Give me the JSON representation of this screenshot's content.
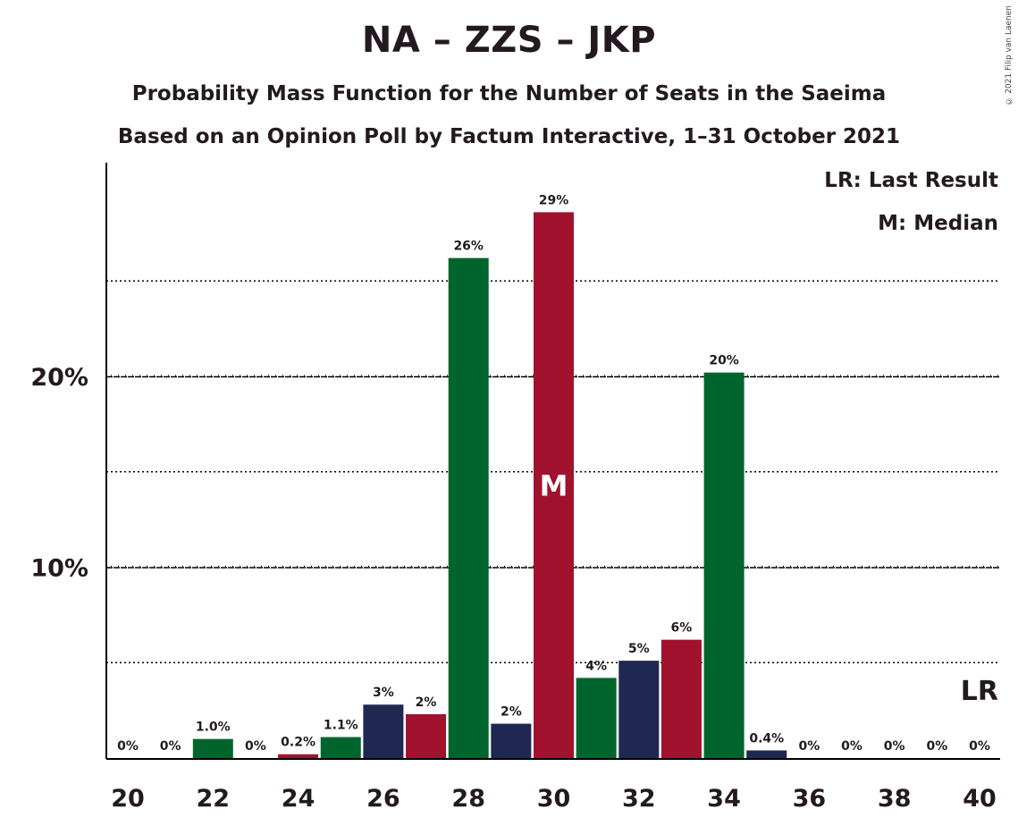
{
  "title": "NA – ZZS – JKP",
  "subtitle1": "Probability Mass Function for the Number of Seats in the Saeima",
  "subtitle2": "Based on an Opinion Poll by Factum Interactive, 1–31 October 2021",
  "copyright": "© 2021 Filip van Laenen",
  "legend": {
    "lr": "LR: Last Result",
    "median": "M: Median"
  },
  "markers": {
    "median_label": "M",
    "median_seat": 30,
    "lr_label": "LR",
    "lr_seat": 40
  },
  "colors": {
    "green": "#00652d",
    "red": "#a0122e",
    "navy": "#1f2850"
  },
  "chart_data": {
    "type": "bar",
    "categories": [
      20,
      21,
      22,
      23,
      24,
      25,
      26,
      27,
      28,
      29,
      30,
      31,
      32,
      33,
      34,
      35,
      36,
      37,
      38,
      39,
      40
    ],
    "values": [
      0,
      0,
      1.0,
      0,
      0.2,
      1.1,
      2.8,
      2.3,
      26.2,
      1.8,
      28.6,
      4.2,
      5.1,
      6.2,
      20.2,
      0.4,
      0,
      0,
      0,
      0,
      0
    ],
    "labels": [
      "0%",
      "0%",
      "1.0%",
      "0%",
      "0.2%",
      "1.1%",
      "3%",
      "2%",
      "26%",
      "2%",
      "29%",
      "4%",
      "5%",
      "6%",
      "20%",
      "0.4%",
      "0%",
      "0%",
      "0%",
      "0%",
      "0%"
    ],
    "bar_colors": [
      "green",
      "red",
      "green",
      "navy",
      "red",
      "green",
      "navy",
      "red",
      "green",
      "navy",
      "red",
      "green",
      "navy",
      "red",
      "green",
      "navy",
      "red",
      "green",
      "navy",
      "red",
      "green"
    ],
    "x_tick_labels": [
      "20",
      "22",
      "24",
      "26",
      "28",
      "30",
      "32",
      "34",
      "36",
      "38",
      "40"
    ],
    "y_tick_labels": [
      "10%",
      "20%"
    ],
    "y_ticks": [
      10,
      20
    ],
    "y_minor_ticks": [
      5,
      15,
      25
    ],
    "ylim": [
      0,
      31
    ],
    "grid": true,
    "legend_position": "top-right"
  }
}
